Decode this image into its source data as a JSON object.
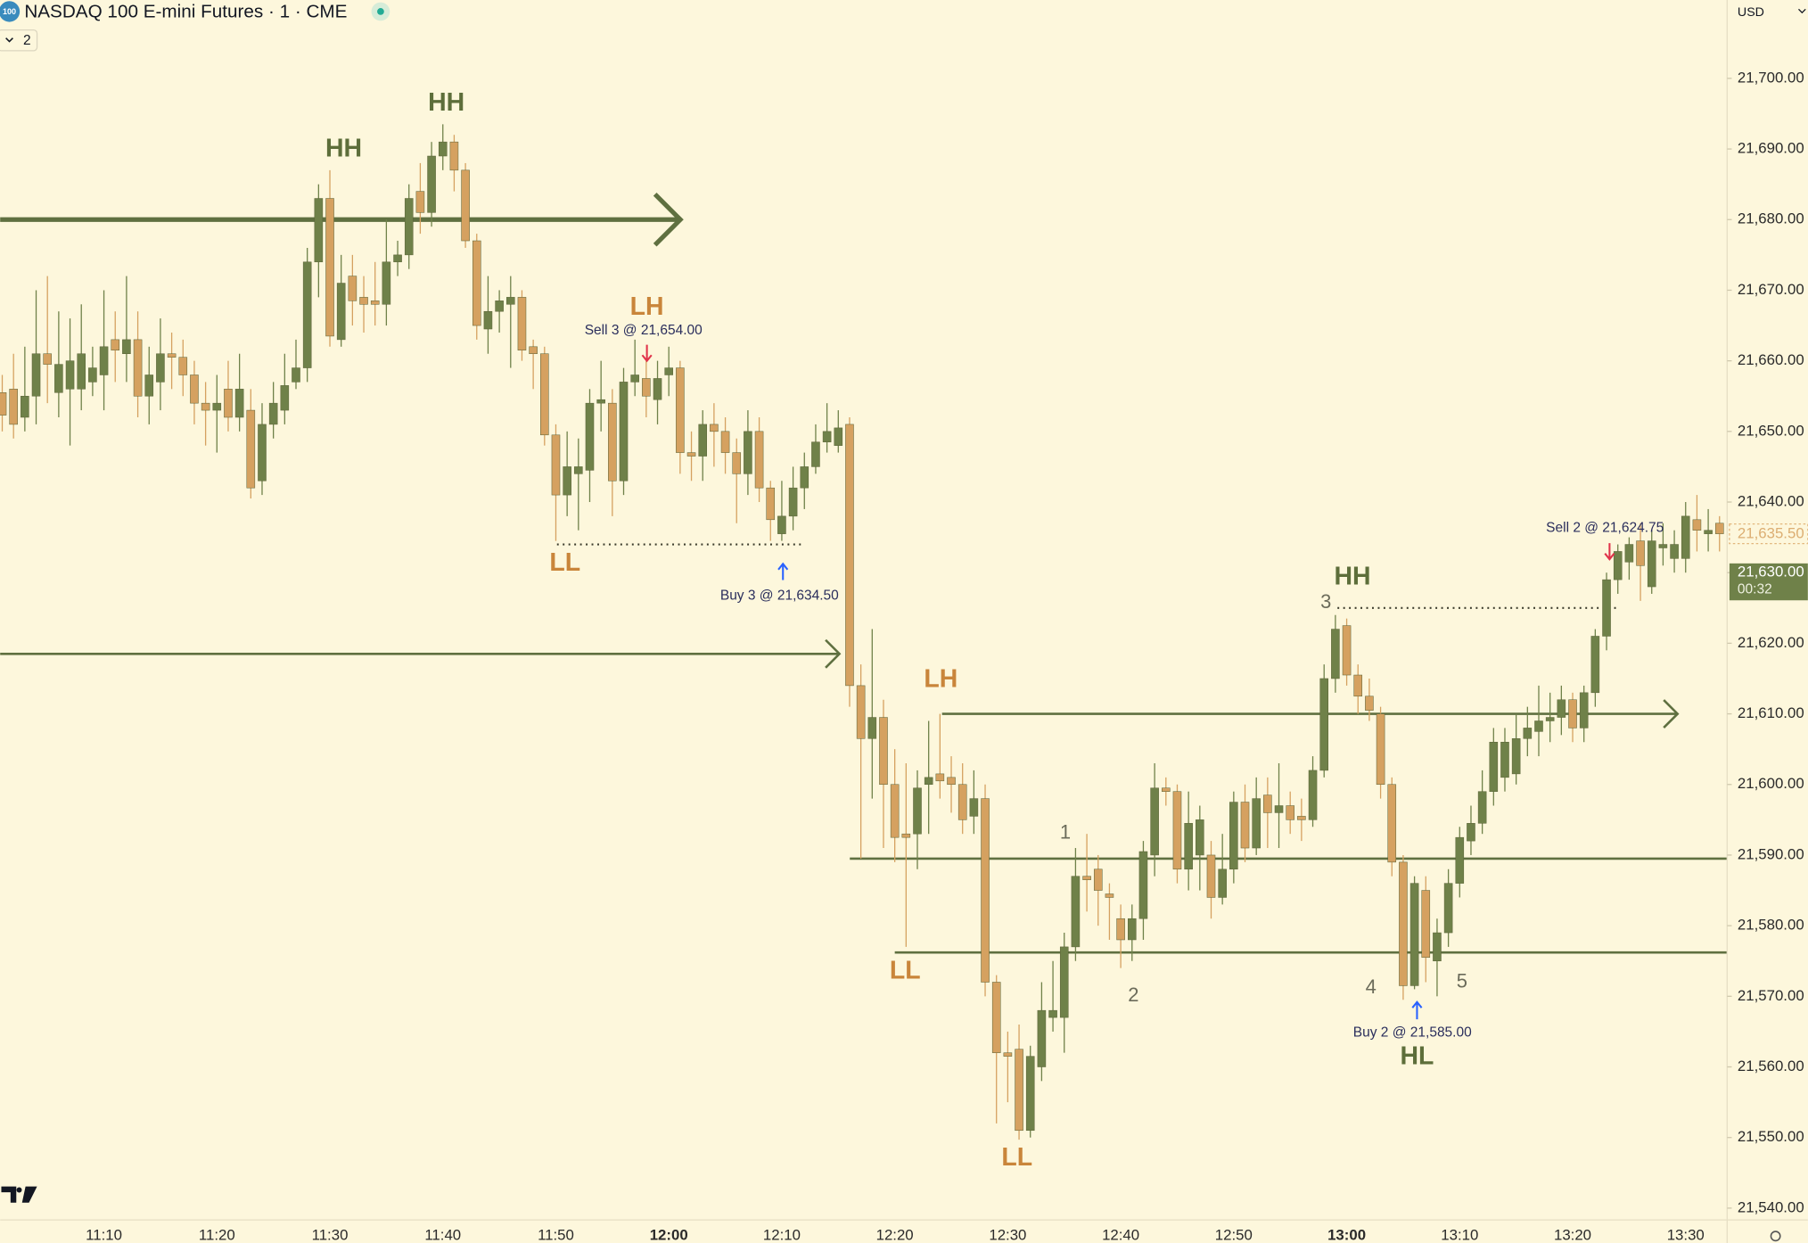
{
  "header": {
    "symbol_badge": "100",
    "title": "NASDAQ 100 E-mini Futures · 1 · CME",
    "interval_badge": "2",
    "currency": "USD"
  },
  "chart_data": {
    "type": "candlestick",
    "categories": [
      null,
      null,
      null,
      null,
      null,
      null,
      null,
      null,
      null,
      "11:10",
      null,
      null,
      null,
      null,
      null,
      null,
      null,
      null,
      null,
      "11:20",
      null,
      null,
      null,
      null,
      null,
      null,
      null,
      null,
      null,
      "11:30",
      null,
      null,
      null,
      null,
      null,
      null,
      null,
      null,
      null,
      "11:40",
      null,
      null,
      null,
      null,
      null,
      null,
      null,
      null,
      null,
      "11:50",
      null,
      null,
      null,
      null,
      null,
      null,
      null,
      null,
      null,
      "12:00",
      null,
      null,
      null,
      null,
      null,
      null,
      null,
      null,
      null,
      "12:10",
      null,
      null,
      null,
      null,
      null,
      null,
      null,
      null,
      null,
      "12:20",
      null,
      null,
      null,
      null,
      null,
      null,
      null,
      null,
      null,
      "12:30",
      null,
      null,
      null,
      null,
      null,
      null,
      null,
      null,
      null,
      "12:40",
      null,
      null,
      null,
      null,
      null,
      null,
      null,
      null,
      null,
      "12:50",
      null,
      null,
      null,
      null,
      null,
      null,
      null,
      null,
      null,
      "13:00",
      null,
      null,
      null,
      null,
      null,
      null,
      null,
      null,
      null,
      "13:10",
      null,
      null,
      null,
      null,
      null,
      null,
      null,
      null,
      null,
      "13:20",
      null,
      null,
      null,
      null,
      null,
      null,
      null,
      null,
      null,
      "13:30",
      null,
      null,
      null
    ],
    "open": [
      21655.5,
      21656,
      21652,
      21655,
      21661,
      21655.5,
      21656,
      21656,
      21657,
      21658,
      21663,
      21661,
      21663,
      21655,
      21657,
      21661,
      21660.5,
      21658,
      21654,
      21653,
      21656,
      21652,
      21653,
      21643,
      21651,
      21653,
      21657,
      21659,
      21674,
      21683,
      21663,
      21672,
      21669,
      21668.5,
      21668,
      21674,
      21675,
      21684,
      21681,
      21689,
      21691,
      21687,
      21677,
      21664.5,
      21667,
      21668,
      21669,
      21662,
      21661,
      21649.5,
      21641,
      21644,
      21644.5,
      21654,
      21654,
      21643,
      21657,
      21657.5,
      21654.5,
      21658,
      21659,
      21647,
      21646.5,
      21651,
      21650,
      21647,
      21644,
      21650,
      21642,
      21635.5,
      21638,
      21642,
      21645,
      21648.5,
      21648,
      21651,
      21614,
      21606.5,
      21609.5,
      21600,
      21593,
      21593,
      21600,
      21601.5,
      21601,
      21600,
      21595.5,
      21598,
      21572,
      21562,
      21562.5,
      21551,
      21560,
      21567,
      21567,
      21577,
      21587,
      21588,
      21584.5,
      21581,
      21578,
      21581,
      21590,
      21599.5,
      21599,
      21588,
      21590,
      21590,
      21584,
      21588,
      21597.5,
      21591,
      21598.5,
      21596,
      21597,
      21595.5,
      21595,
      21602,
      21615,
      21622.5,
      21615.5,
      21612.5,
      21610,
      21600,
      21589,
      21571.5,
      21585,
      21575,
      21579,
      21586,
      21592,
      21594.5,
      21599,
      21601,
      21601.5,
      21606.5,
      21607.5,
      21609,
      21609.5,
      21612,
      21608,
      21613,
      21621,
      21629,
      21631.5,
      21634.5,
      21628,
      21633.5,
      21632,
      21632,
      21637.5,
      21635.5,
      21637
    ],
    "high": [
      21658,
      21661,
      21662,
      21670,
      21672,
      21667,
      21666,
      21668,
      21662,
      21670,
      21667,
      21672,
      21667,
      21662,
      21666,
      21664,
      21663,
      21660,
      21657,
      21658,
      21660,
      21661,
      21656,
      21654,
      21657,
      21661,
      21663,
      21676,
      21685,
      21687,
      21675,
      21675,
      21672,
      21674,
      21680,
      21677,
      21685,
      21688,
      21691,
      21693.5,
      21692,
      21688,
      21678,
      21672,
      21670,
      21672,
      21670,
      21663,
      21662,
      21651,
      21650,
      21649,
      21656,
      21660,
      21656,
      21659,
      21663,
      21660,
      21660,
      21662,
      21660,
      21650,
      21653,
      21654,
      21652,
      21649,
      21653,
      21652,
      21643,
      21643,
      21645,
      21647,
      21651,
      21654,
      21653,
      21652,
      21617,
      21622,
      21612,
      21605,
      21603,
      21602,
      21609,
      21610,
      21604,
      21603,
      21602,
      21600,
      21573,
      21565,
      21566,
      21563,
      21572,
      21575,
      21579,
      21591,
      21593,
      21590,
      21586,
      21583,
      21583,
      21592,
      21603,
      21601,
      21600,
      21599,
      21597,
      21592,
      21593,
      21599,
      21600,
      21601,
      21601,
      21603,
      21599,
      21598,
      21604,
      21617,
      21624,
      21623.5,
      21617,
      21615,
      21611,
      21601,
      21590,
      21587,
      21587,
      21581,
      21588,
      21594,
      21597,
      21602,
      21608,
      21608,
      21610,
      21611,
      21614,
      21613,
      21614,
      21613,
      21614,
      21622,
      21630,
      21634,
      21635,
      21637,
      21636,
      21637,
      21636,
      21640,
      21641,
      21639,
      21638
    ],
    "low": [
      21650,
      21649,
      21650,
      21651,
      21654,
      21652,
      21648,
      21653,
      21655,
      21653,
      21657,
      21657,
      21652,
      21651,
      21653,
      21656,
      21655,
      21651,
      21648,
      21647,
      21650,
      21650,
      21640.5,
      21641,
      21649,
      21651,
      21656,
      21657,
      21669,
      21662,
      21662,
      21665,
      21664,
      21665,
      21665,
      21672,
      21673,
      21678,
      21679,
      21687,
      21684,
      21676,
      21663,
      21661,
      21664,
      21659,
      21660,
      21656,
      21648,
      21634.5,
      21638,
      21636,
      21640,
      21650,
      21638,
      21641,
      21655,
      21652,
      21651,
      21655,
      21644,
      21643,
      21643,
      21645,
      21644,
      21637,
      21641,
      21640,
      21634.5,
      21634.5,
      21636,
      21639,
      21644,
      21647,
      21647,
      21611,
      21589.5,
      21598,
      21591,
      21589,
      21577,
      21588,
      21593,
      21598,
      21596,
      21593,
      21593,
      21570,
      21552,
      21555,
      21549.7,
      21550,
      21558,
      21565,
      21562,
      21575,
      21582,
      21580,
      21578,
      21574,
      21575,
      21578,
      21587,
      21597,
      21586,
      21585,
      21585,
      21581,
      21583,
      21586,
      21589,
      21590,
      21591,
      21591,
      21593,
      21592,
      21594,
      21601,
      21613,
      21614,
      21610,
      21609,
      21598,
      21587,
      21569.5,
      21571,
      21572,
      21570,
      21577,
      21584,
      21590,
      21593,
      21597,
      21599,
      21600,
      21604,
      21604,
      21606,
      21607,
      21606,
      21606,
      21611,
      21619,
      21627,
      21629,
      21626,
      21627,
      21631,
      21630,
      21630,
      21633,
      21633,
      21633
    ],
    "close": [
      21652.3,
      21651,
      21655,
      21661,
      21659.5,
      21659.5,
      21660,
      21661,
      21659,
      21662,
      21661.5,
      21663,
      21655,
      21658,
      21661,
      21660.5,
      21658,
      21654,
      21653,
      21654,
      21652,
      21656,
      21642,
      21651,
      21654,
      21656.5,
      21659,
      21674,
      21683,
      21663.5,
      21671,
      21668.5,
      21668,
      21668,
      21674,
      21675,
      21683,
      21681,
      21689,
      21691,
      21687,
      21677,
      21665,
      21667,
      21668.5,
      21669,
      21661.5,
      21661,
      21649.5,
      21641,
      21645,
      21645,
      21654,
      21654.5,
      21643,
      21657,
      21658,
      21655,
      21657.5,
      21659,
      21647,
      21646.5,
      21651,
      21650,
      21647,
      21644,
      21650,
      21642,
      21637.5,
      21638,
      21642,
      21645,
      21648.5,
      21650,
      21650.5,
      21614,
      21606.5,
      21609.5,
      21600,
      21592.5,
      21592.5,
      21599.5,
      21601,
      21600.5,
      21600,
      21595,
      21598,
      21572,
      21562,
      21561.5,
      21551,
      21561.5,
      21568,
      21568,
      21577,
      21587,
      21586.5,
      21585,
      21584,
      21578,
      21581,
      21590.5,
      21599.5,
      21599,
      21588,
      21594.5,
      21595,
      21584,
      21588,
      21597.5,
      21591,
      21598,
      21596,
      21597,
      21595,
      21595,
      21602,
      21615,
      21622,
      21615.5,
      21612.5,
      21610.5,
      21600,
      21589,
      21571.5,
      21586,
      21575.5,
      21579,
      21586,
      21592.5,
      21594.5,
      21599,
      21606,
      21606,
      21606.5,
      21608,
      21609,
      21609.5,
      21612,
      21608,
      21613,
      21621,
      21629,
      21633,
      21634,
      21631,
      21634.5,
      21634,
      21634,
      21638,
      21636,
      21636,
      21635.5
    ],
    "up_color": "#6f8149",
    "down_color": "#d5a160",
    "line_color": "#5f7040",
    "ylim": [
      21538,
      21711.1
    ],
    "yticks": [
      {
        "value": 21540,
        "label": "21,540.00"
      },
      {
        "value": 21550,
        "label": "21,550.00"
      },
      {
        "value": 21560,
        "label": "21,560.00"
      },
      {
        "value": 21570,
        "label": "21,570.00"
      },
      {
        "value": 21580,
        "label": "21,580.00"
      },
      {
        "value": 21590,
        "label": "21,590.00"
      },
      {
        "value": 21600,
        "label": "21,600.00"
      },
      {
        "value": 21610,
        "label": "21,610.00"
      },
      {
        "value": 21620,
        "label": "21,620.00"
      },
      {
        "value": 21630,
        "label": "21,630.00"
      },
      {
        "value": 21640,
        "label": "21,640.00"
      },
      {
        "value": 21650,
        "label": "21,650.00"
      },
      {
        "value": 21660,
        "label": "21,660.00"
      },
      {
        "value": 21670,
        "label": "21,670.00"
      },
      {
        "value": 21680,
        "label": "21,680.00"
      },
      {
        "value": 21690,
        "label": "21,690.00"
      },
      {
        "value": 21700,
        "label": "21,700.00"
      }
    ],
    "grid": false,
    "levels": [
      21680,
      21618.5,
      21610,
      21589.5,
      21576.2,
      21634,
      21625
    ],
    "price_tags": [
      {
        "value": 21635.5,
        "label": "21,635.50"
      },
      {
        "value": 21630,
        "label": "21,630.00",
        "countdown": "00:32"
      }
    ],
    "annotations": [
      "HH",
      "HH",
      "LH",
      "Sell 3 @ 21,654.00",
      "LL",
      "Buy 3 @ 21,634.50",
      "LH",
      "LL",
      "LL",
      "1",
      "2",
      "3",
      "HH",
      "4",
      "5",
      "Buy 2 @ 21,585.00",
      "HL",
      "Sell 2 @ 21,624.75"
    ]
  }
}
